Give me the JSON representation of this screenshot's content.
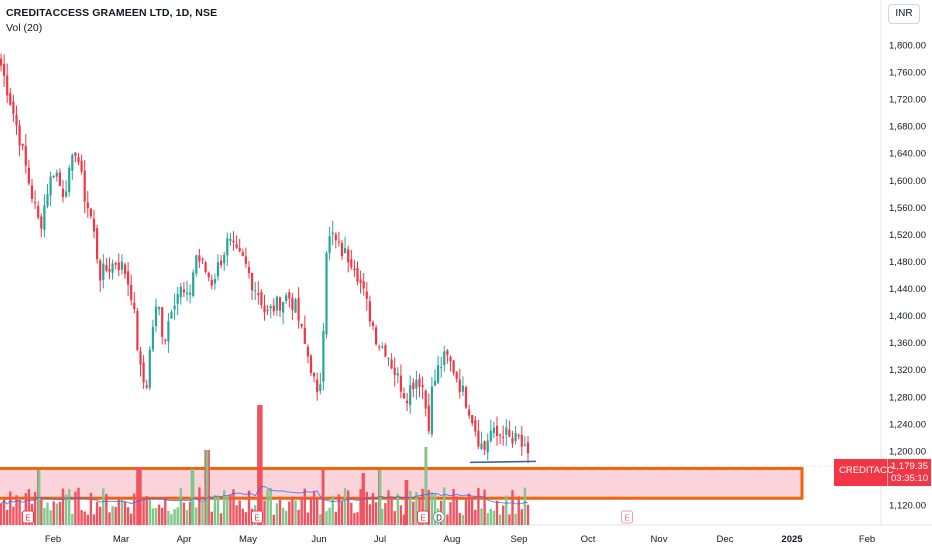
{
  "legend": {
    "title": "CREDITACCESS GRAMEEN LTD, 1D, NSE",
    "volume": "Vol (20)"
  },
  "currency": "INR",
  "price_tag": {
    "symbol": "CREDITACC",
    "price": "1,179.35",
    "countdown": "03:35:10"
  },
  "colors": {
    "up": "#26a69a",
    "down": "#f23645",
    "vol_up": "#7fc78a",
    "vol_down": "#f0525f",
    "vol_ma": "#2962ff",
    "highlight_border": "#f0640a",
    "highlight_fill": "#fbd3da",
    "price_line": "#f23645",
    "grid_text": "#131722"
  },
  "chart_data": {
    "type": "candlestick",
    "title": "CREDITACCESS GRAMEEN LTD, 1D, NSE",
    "xlabel": "",
    "ylabel": "",
    "ylim": [
      1080,
      1830
    ],
    "x_ticks": [
      "Feb",
      "Mar",
      "Apr",
      "May",
      "Jun",
      "Jul",
      "Aug",
      "Sep",
      "Oct",
      "Nov",
      "Dec",
      "2025",
      "Feb"
    ],
    "y_ticks": [
      1120,
      1200,
      1240,
      1280,
      1320,
      1360,
      1400,
      1440,
      1480,
      1520,
      1560,
      1600,
      1640,
      1680,
      1720,
      1760,
      1800
    ],
    "last_price": 1179.35,
    "close_path": [
      [
        1,
        1770
      ],
      [
        10,
        1720
      ],
      [
        20,
        1660
      ],
      [
        30,
        1590
      ],
      [
        40,
        1530
      ],
      [
        48,
        1590
      ],
      [
        55,
        1620
      ],
      [
        62,
        1580
      ],
      [
        70,
        1610
      ],
      [
        76,
        1650
      ],
      [
        84,
        1580
      ],
      [
        92,
        1540
      ],
      [
        100,
        1460
      ],
      [
        108,
        1470
      ],
      [
        116,
        1480
      ],
      [
        124,
        1470
      ],
      [
        132,
        1430
      ],
      [
        140,
        1320
      ],
      [
        146,
        1290
      ],
      [
        152,
        1380
      ],
      [
        158,
        1420
      ],
      [
        164,
        1360
      ],
      [
        172,
        1420
      ],
      [
        180,
        1440
      ],
      [
        188,
        1420
      ],
      [
        196,
        1490
      ],
      [
        204,
        1470
      ],
      [
        212,
        1450
      ],
      [
        220,
        1480
      ],
      [
        228,
        1510
      ],
      [
        236,
        1490
      ],
      [
        244,
        1480
      ],
      [
        252,
        1450
      ],
      [
        260,
        1430
      ],
      [
        266,
        1400
      ],
      [
        272,
        1410
      ],
      [
        280,
        1420
      ],
      [
        288,
        1430
      ],
      [
        296,
        1410
      ],
      [
        304,
        1360
      ],
      [
        312,
        1320
      ],
      [
        318,
        1270
      ],
      [
        322,
        1330
      ],
      [
        326,
        1500
      ],
      [
        332,
        1520
      ],
      [
        338,
        1500
      ],
      [
        346,
        1490
      ],
      [
        354,
        1480
      ],
      [
        362,
        1440
      ],
      [
        370,
        1400
      ],
      [
        378,
        1360
      ],
      [
        386,
        1350
      ],
      [
        394,
        1320
      ],
      [
        400,
        1300
      ],
      [
        406,
        1280
      ],
      [
        412,
        1300
      ],
      [
        418,
        1310
      ],
      [
        424,
        1290
      ],
      [
        428,
        1230
      ],
      [
        432,
        1290
      ],
      [
        438,
        1320
      ],
      [
        446,
        1340
      ],
      [
        454,
        1320
      ],
      [
        462,
        1290
      ],
      [
        470,
        1260
      ],
      [
        478,
        1220
      ],
      [
        484,
        1200
      ],
      [
        490,
        1230
      ],
      [
        496,
        1220
      ],
      [
        504,
        1230
      ],
      [
        512,
        1210
      ],
      [
        518,
        1220
      ],
      [
        524,
        1200
      ],
      [
        530,
        1180
      ]
    ],
    "volume": {
      "label": "Vol (20)",
      "values": [
        30,
        28,
        42,
        35,
        55,
        48,
        60,
        52,
        45,
        40,
        38,
        36,
        50,
        44,
        40,
        35,
        47,
        42,
        38,
        45
      ],
      "spikes": [
        {
          "x": 39,
          "h": 55,
          "dir": "up"
        },
        {
          "x": 139,
          "h": 58,
          "dir": "down"
        },
        {
          "x": 192,
          "h": 56,
          "dir": "up"
        },
        {
          "x": 207,
          "h": 75,
          "dir": "up"
        },
        {
          "x": 260,
          "h": 120,
          "dir": "down"
        },
        {
          "x": 323,
          "h": 55,
          "dir": "down"
        },
        {
          "x": 363,
          "h": 52,
          "dir": "down"
        },
        {
          "x": 380,
          "h": 55,
          "dir": "up"
        },
        {
          "x": 406,
          "h": 45,
          "dir": "down"
        },
        {
          "x": 426,
          "h": 78,
          "dir": "up"
        }
      ]
    },
    "events": [
      {
        "type": "E",
        "x": 28
      },
      {
        "type": "E",
        "x": 257
      },
      {
        "type": "E",
        "x": 423
      },
      {
        "type": "D",
        "x": 439
      },
      {
        "type": "E",
        "x": 627
      }
    ],
    "annotations": [
      {
        "type": "rectangle",
        "from_price": 1174,
        "to_price": 1130
      },
      {
        "type": "horizontal_segment",
        "price": 1183
      }
    ]
  }
}
